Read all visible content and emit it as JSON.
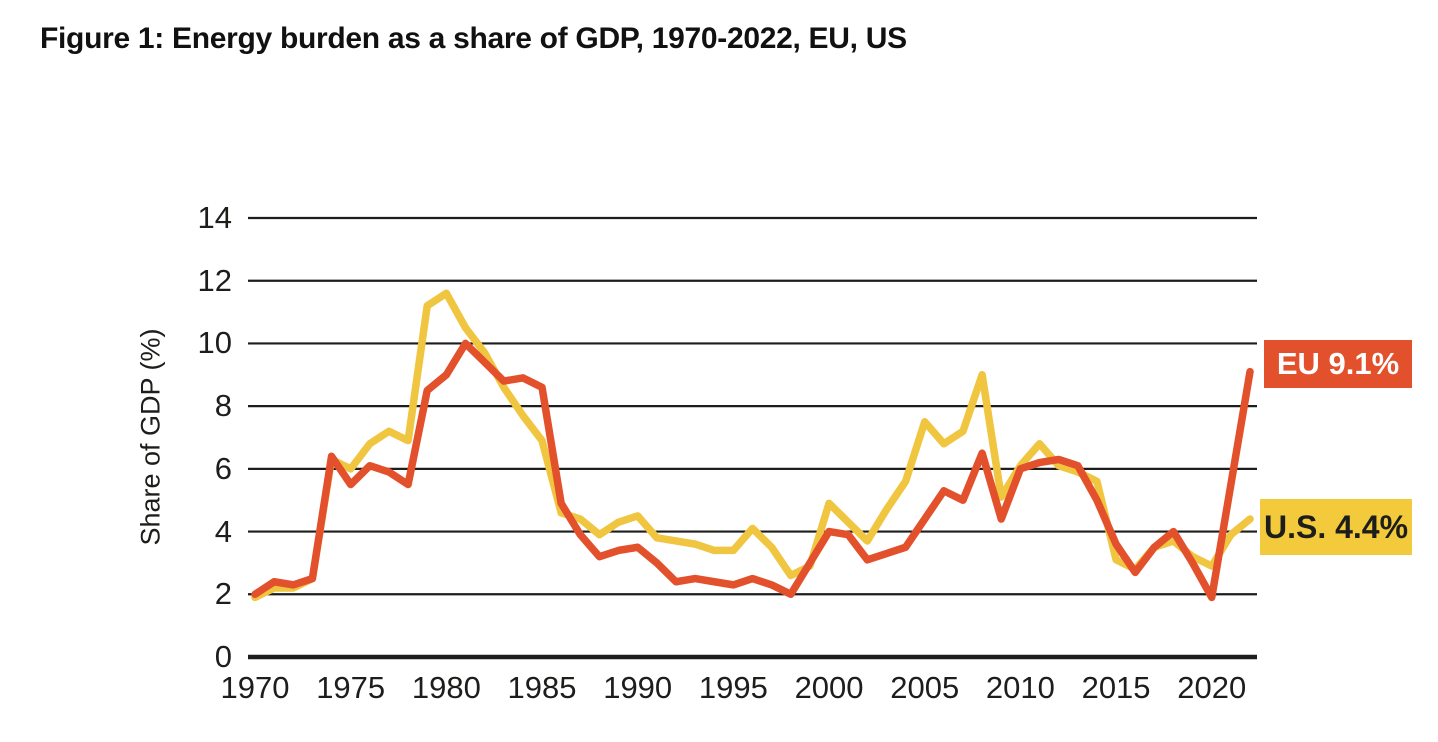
{
  "page": {
    "background": "#ffffff",
    "title": "Figure 1: Energy burden as a share of GDP, 1970-2022, EU, US"
  },
  "chart_data": {
    "type": "line",
    "title": "Figure 1: Energy burden as a share of GDP, 1970-2022, EU, US",
    "xlabel": "",
    "ylabel": "Share of GDP (%)",
    "xlim": [
      1970,
      2022
    ],
    "ylim": [
      0,
      14
    ],
    "y_ticks": [
      0,
      2,
      4,
      6,
      8,
      10,
      12,
      14
    ],
    "x_tick_years": [
      1970,
      1975,
      1980,
      1985,
      1990,
      1995,
      2000,
      2005,
      2010,
      2015,
      2020
    ],
    "x_tick_labels": [
      "1970",
      "1975",
      "1980",
      "1985",
      "1990",
      "1995",
      "2000",
      "2005",
      "2010",
      "2015",
      "2020"
    ],
    "grid": "horizontal",
    "grid_color": "#1d1d1b",
    "legend_position": "right-end-labels",
    "x": [
      1970,
      1971,
      1972,
      1973,
      1974,
      1975,
      1976,
      1977,
      1978,
      1979,
      1980,
      1981,
      1982,
      1983,
      1984,
      1985,
      1986,
      1987,
      1988,
      1989,
      1990,
      1991,
      1992,
      1993,
      1994,
      1995,
      1996,
      1997,
      1998,
      1999,
      2000,
      2001,
      2002,
      2003,
      2004,
      2005,
      2006,
      2007,
      2008,
      2009,
      2010,
      2011,
      2012,
      2013,
      2014,
      2015,
      2016,
      2017,
      2018,
      2019,
      2020,
      2021,
      2022
    ],
    "series": [
      {
        "name": "EU",
        "color": "#e3502c",
        "end_label": "EU 9.1%",
        "end_label_bg": "#e3502c",
        "end_label_text_color": "#ffffff",
        "values": [
          2.0,
          2.4,
          2.3,
          2.5,
          6.4,
          5.5,
          6.1,
          5.9,
          5.5,
          8.5,
          9.0,
          10.0,
          9.4,
          8.8,
          8.9,
          8.6,
          4.9,
          3.9,
          3.2,
          3.4,
          3.5,
          3.0,
          2.4,
          2.5,
          2.4,
          2.3,
          2.5,
          2.3,
          2.0,
          3.0,
          4.0,
          3.9,
          3.1,
          3.3,
          3.5,
          4.4,
          5.3,
          5.0,
          6.5,
          4.4,
          6.0,
          6.2,
          6.3,
          6.1,
          5.0,
          3.6,
          2.7,
          3.5,
          4.0,
          3.0,
          1.9,
          5.5,
          9.1
        ]
      },
      {
        "name": "U.S.",
        "color": "#f0c540",
        "end_label": "U.S. 4.4%",
        "end_label_bg": "#f3ca3c",
        "end_label_text_color": "#1d1d1b",
        "values": [
          1.9,
          2.2,
          2.2,
          2.5,
          6.3,
          6.0,
          6.8,
          7.2,
          6.9,
          11.2,
          11.6,
          10.5,
          9.7,
          8.6,
          7.7,
          6.9,
          4.6,
          4.4,
          3.9,
          4.3,
          4.5,
          3.8,
          3.7,
          3.6,
          3.4,
          3.4,
          4.1,
          3.5,
          2.6,
          2.9,
          4.9,
          4.3,
          3.7,
          4.7,
          5.6,
          7.5,
          6.8,
          7.2,
          9.0,
          5.1,
          6.1,
          6.8,
          6.1,
          5.9,
          5.6,
          3.1,
          2.8,
          3.5,
          3.7,
          3.2,
          2.9,
          3.9,
          4.4
        ]
      }
    ]
  }
}
